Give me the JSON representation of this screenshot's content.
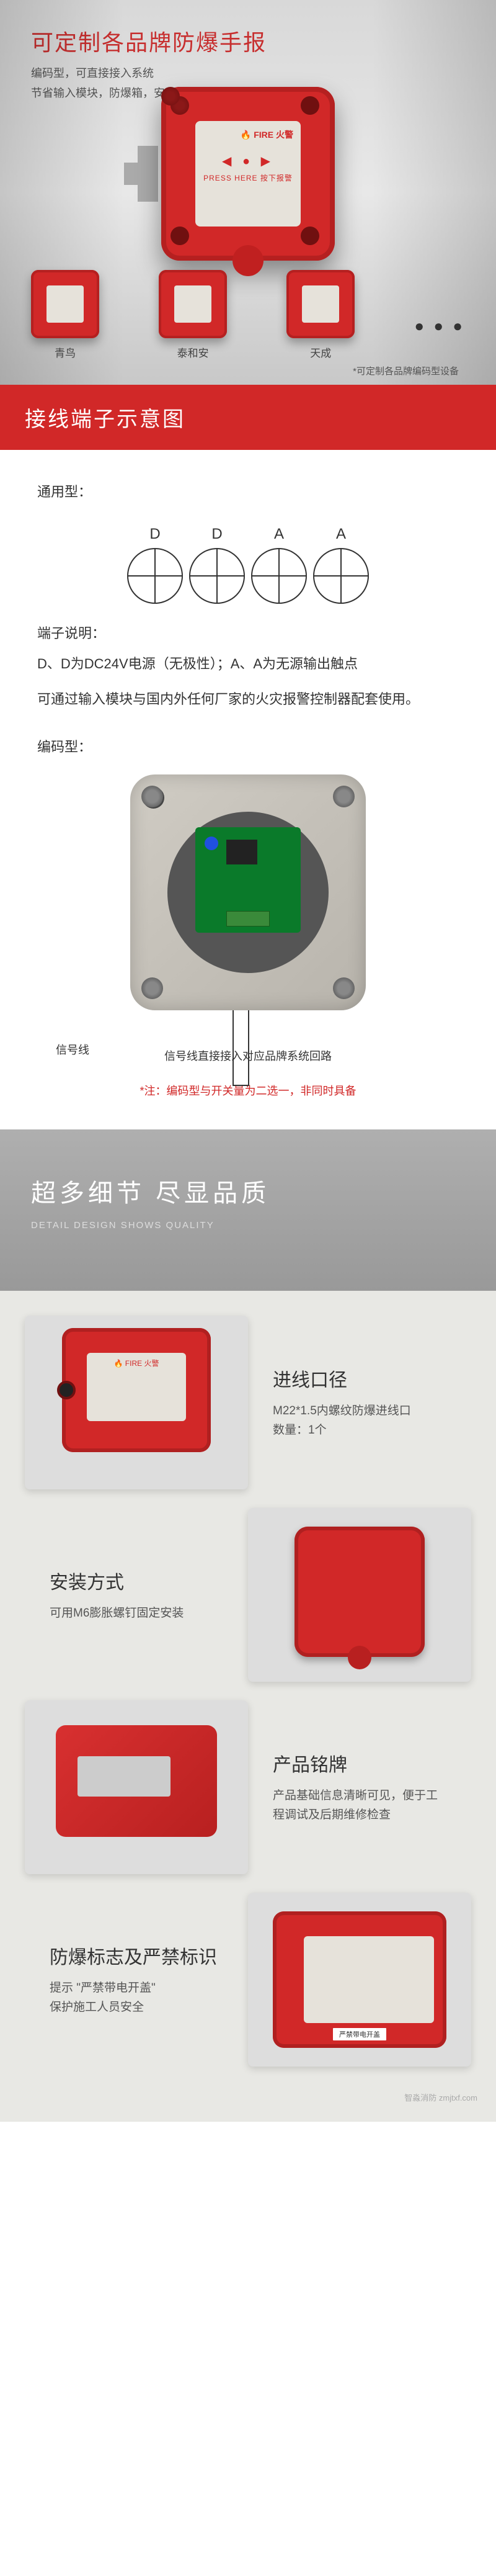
{
  "hero": {
    "title": "可定制各品牌防爆手报",
    "sub": "编码型，可直接接入系统",
    "desc": "节省输入模块，防爆箱，安装更简单方便",
    "fire_label": "🔥 FIRE 火警",
    "arrows": "◀ ● ▶",
    "press": "PRESS HERE  按下报警",
    "variants": [
      {
        "label": "青鸟"
      },
      {
        "label": "泰和安"
      },
      {
        "label": "天成"
      }
    ],
    "dots": "● ● ●",
    "note": "*可定制各品牌编码型设备"
  },
  "terminal": {
    "header": "接线端子示意图",
    "sub_label": "通用型：",
    "letters": [
      "D",
      "D",
      "A",
      "A"
    ],
    "explain_label": "端子说明：",
    "explain_desc": "D、D为DC24V电源（无极性）；A、A为无源输出触点",
    "usage": "可通过输入模块与国内外任何厂家的火灾报警控制器配套使用。",
    "encode_label": "编码型：",
    "signal_label": "信号线",
    "signal_desc": "信号线直接接入对应品牌系统回路",
    "signal_note": "*注：编码型与开关量为二选一，非同时具备"
  },
  "details": {
    "title": "超多细节 尽显品质",
    "sub": "DETAIL DESIGN SHOWS QUALITY",
    "items": [
      {
        "h": "进线口径",
        "p1": "M22*1.5内螺纹防爆进线口",
        "p2": "数量：1个"
      },
      {
        "h": "安装方式",
        "p1": "可用M6膨胀螺钉固定安装",
        "p2": ""
      },
      {
        "h": "产品铭牌",
        "p1": "产品基础信息清晰可见，便于工程调试及后期维修检查",
        "p2": ""
      },
      {
        "h": "防爆标志及严禁标识",
        "p1": "提示 \"严禁带电开盖\"",
        "p2": "保护施工人员安全"
      }
    ],
    "fire_label": "🔥 FIRE 火警",
    "watermark": "智淼消防\nzmjtxf.com"
  }
}
